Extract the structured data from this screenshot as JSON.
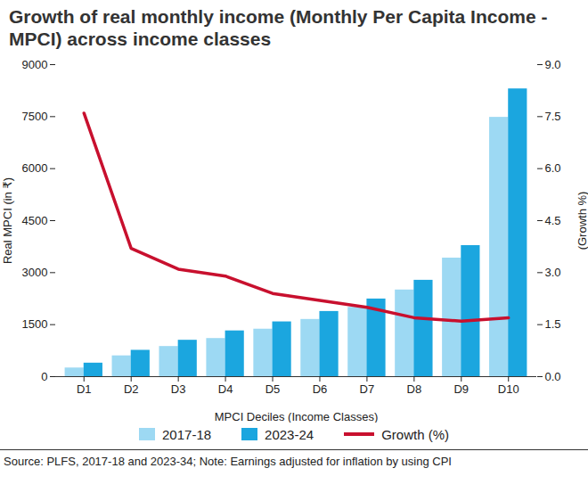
{
  "chart_data": {
    "type": "bar",
    "title": "Growth of real monthly income (Monthly Per Capita Income - MPCI) across income classes",
    "source": "Source: PLFS, 2017-18 and 2023-34; Note: Earnings adjusted for inflation by using CPI",
    "x_label": "MPCI Deciles (Income Classes)",
    "y_label": "Real MPCI (in ₹)",
    "y2_label": "(Growth %)",
    "categories": [
      "D1",
      "D2",
      "D3",
      "D4",
      "D5",
      "D6",
      "D7",
      "D8",
      "D9",
      "D10"
    ],
    "series": [
      {
        "name": "2017-18",
        "color": "#9dd9f3",
        "values": [
          250,
          600,
          870,
          1100,
          1370,
          1650,
          2000,
          2500,
          3420,
          7480
        ]
      },
      {
        "name": "2023-24",
        "color": "#1ba6df",
        "values": [
          390,
          760,
          1050,
          1320,
          1580,
          1880,
          2240,
          2780,
          3780,
          8300
        ]
      },
      {
        "name": "Growth (%)",
        "type": "line",
        "axis": "y2",
        "color": "#c8102e",
        "values": [
          7.6,
          3.7,
          3.1,
          2.9,
          2.4,
          2.2,
          2.0,
          1.7,
          1.6,
          1.7
        ]
      }
    ],
    "ylim": [
      0,
      9000
    ],
    "yticks": [
      0,
      1500,
      3000,
      4500,
      6000,
      7500,
      9000
    ],
    "y2lim": [
      0,
      9
    ],
    "y2ticks": [
      {
        "value": 0,
        "label": "0.0"
      },
      {
        "value": 1.5,
        "label": "1.5"
      },
      {
        "value": 3,
        "label": "3.0"
      },
      {
        "value": 4.5,
        "label": "4.5"
      },
      {
        "value": 6,
        "label": "6.0"
      },
      {
        "value": 7.5,
        "label": "7.5"
      },
      {
        "value": 9,
        "label": "9.0"
      }
    ],
    "legend": "bottom"
  }
}
